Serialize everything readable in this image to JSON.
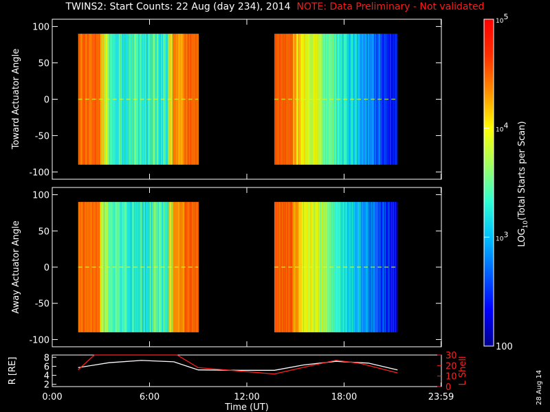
{
  "title": "TWINS2: Start Counts: 22 Aug (day 234), 2014",
  "note": "NOTE: Data Preliminary - Not validated",
  "footer_date": "28 Aug 14",
  "colorbar": {
    "label_prefix": "LOG",
    "label_sub": "10",
    "label_rest": "(Total Starts per Scan)",
    "min": 100,
    "max": 100000,
    "ticks": [
      {
        "value": 100,
        "label": "100"
      },
      {
        "value": 1000,
        "base": "10",
        "exp": "3"
      },
      {
        "value": 10000,
        "base": "10",
        "exp": "4"
      },
      {
        "value": 100000,
        "base": "10",
        "exp": "5"
      }
    ],
    "colors": [
      "#00008f",
      "#0000ff",
      "#0060ff",
      "#00c0ff",
      "#30ffd0",
      "#a0ff60",
      "#ffff00",
      "#ff9000",
      "#ff3000",
      "#ff0000"
    ]
  },
  "chart_data": [
    {
      "type": "heatmap",
      "ylabel": "Toward Actuator Angle",
      "ylim": [
        -110,
        110
      ],
      "yticks": [
        "-100",
        "-50",
        "0",
        "50",
        "100"
      ],
      "segments": [
        {
          "x_start": 1.6,
          "x_end": 9.0
        },
        {
          "x_start": 13.7,
          "x_end": 21.3
        }
      ],
      "value_scale": "log10 total starts per scan"
    },
    {
      "type": "heatmap",
      "ylabel": "Away Actuator Angle",
      "ylim": [
        -110,
        110
      ],
      "yticks": [
        "-100",
        "-50",
        "0",
        "50",
        "100"
      ],
      "segments": [
        {
          "x_start": 1.6,
          "x_end": 9.0
        },
        {
          "x_start": 13.7,
          "x_end": 21.3
        }
      ],
      "value_scale": "log10 total starts per scan"
    },
    {
      "type": "line",
      "ylabel_left": "R [RE]",
      "ylabel_right": "L Shell",
      "ylim_left": [
        1.5,
        8.5
      ],
      "ylim_right": [
        0,
        30
      ],
      "yticks_left": [
        "2",
        "4",
        "6",
        "8"
      ],
      "yticks_right": [
        "0",
        "10",
        "20",
        "30"
      ],
      "series": [
        {
          "color": "#ffffff",
          "axis": "left",
          "x": [
            1.6,
            3.5,
            5.5,
            7.5,
            9.0,
            11.5,
            13.7,
            15.5,
            17.5,
            19.5,
            21.3
          ],
          "y": [
            5.7,
            6.8,
            7.3,
            7.0,
            5.2,
            5.1,
            5.1,
            6.3,
            7.1,
            6.7,
            5.2
          ]
        },
        {
          "color": "#ff2020",
          "axis": "right",
          "x": [
            1.6,
            2.6,
            7.7,
            9.0,
            13.7,
            16.0,
            17.5,
            19.0,
            21.3
          ],
          "y": [
            16,
            30,
            30,
            18,
            12,
            20,
            25,
            22,
            13
          ]
        }
      ]
    }
  ],
  "x_axis": {
    "label": "Time (UT)",
    "xlim": [
      0,
      24
    ],
    "ticks": [
      {
        "value": 0,
        "label": "0:00"
      },
      {
        "value": 6,
        "label": "6:00"
      },
      {
        "value": 12,
        "label": "12:00"
      },
      {
        "value": 18,
        "label": "18:00"
      },
      {
        "value": 23.98,
        "label": "23:59"
      }
    ]
  }
}
